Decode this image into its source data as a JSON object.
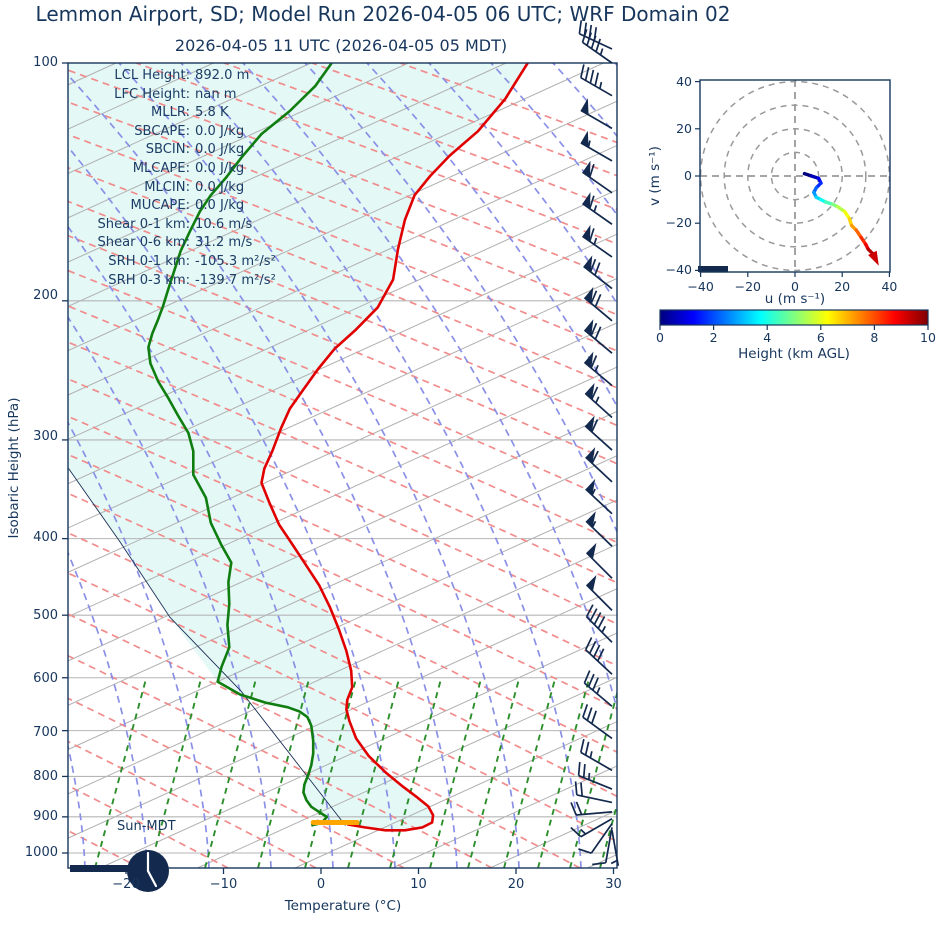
{
  "header": {
    "title": "Lemmon Airport, SD; Model Run 2026-04-05 06 UTC; WRF Domain 02",
    "subtitle": "2026-04-05 11 UTC  (2026-04-05 05 MDT)"
  },
  "skewt": {
    "xlabel": "Temperature (°C)",
    "ylabel": "Isobaric Height (hPa)",
    "x_ticks": [
      "−20",
      "−10",
      "0",
      "10",
      "20",
      "30"
    ],
    "y_ticks": [
      "100",
      "200",
      "300",
      "400",
      "500",
      "600",
      "700",
      "800",
      "900",
      "1000"
    ],
    "sun_label": "Sun-MDT",
    "stats": [
      {
        "label": "LCL Height:",
        "value": "892.0 m"
      },
      {
        "label": "LFC Height:",
        "value": "nan m"
      },
      {
        "label": "MLLR:",
        "value": "5.8 K"
      },
      {
        "label": "SBCAPE:",
        "value": "0.0 J/kg"
      },
      {
        "label": "SBCIN:",
        "value": "0.0 J/kg"
      },
      {
        "label": "MLCAPE:",
        "value": "0.0 J/kg"
      },
      {
        "label": "MLCIN:",
        "value": "0.0 J/kg"
      },
      {
        "label": "MUCAPE:",
        "value": "0.0 J/kg"
      },
      {
        "label": "Shear 0-1 km:",
        "value": "10.6 m/s"
      },
      {
        "label": "Shear 0-6 km:",
        "value": "31.2 m/s"
      },
      {
        "label": "SRH 0-1 km:",
        "value": "-105.3 m²/s²"
      },
      {
        "label": "SRH 0-3 km:",
        "value": "-139.7 m²/s²"
      }
    ]
  },
  "hodograph": {
    "xlabel": "u (m s⁻¹)",
    "ylabel": "v (m s⁻¹)",
    "x_ticks": [
      "−40",
      "−20",
      "0",
      "20",
      "40"
    ],
    "y_ticks": [
      "40",
      "20",
      "0",
      "−20",
      "−40"
    ]
  },
  "colorbar": {
    "label": "Height (km AGL)",
    "ticks": [
      "0",
      "2",
      "4",
      "6",
      "8",
      "10"
    ]
  },
  "colors": {
    "text": "#17365c",
    "spine": "#17365c",
    "temperature_line": "#e00000",
    "dewpoint_line": "#0f7d0f",
    "parcel_line": "#1a2f55",
    "shade_fill": "#e4f8f6",
    "isotherm_gray": "#b0b0b0",
    "pressure_grid": "#b5b5b5",
    "dry_adiabat": "#f18c8c",
    "moist_adiabat": "#8a90e6",
    "mixing_ratio": "#2c8f2c",
    "barb_navy": "#13294d",
    "surface_marker": "#ffa500",
    "hodo_grid": "#999999"
  },
  "chart_data": {
    "type": "line",
    "title": "2026-04-05 11 UTC  (2026-04-05 05 MDT)",
    "xlabel": "Temperature (°C)",
    "ylabel": "Isobaric Height (hPa)",
    "axes": {
      "skewt_xlim_degC": [
        -26,
        31
      ],
      "skewt_plim_hPa": [
        1048,
        100
      ],
      "skew_note": "x values below are skewed display coordinates (x-axis reading directly under the point)",
      "hodograph_xlim": [
        -40,
        40
      ],
      "hodograph_ylim": [
        -40,
        40
      ],
      "colorbar_range_km": [
        0,
        10
      ]
    },
    "temperature_profile": [
      [
        21.2,
        100
      ],
      [
        18.9,
        111
      ],
      [
        16.1,
        122
      ],
      [
        13.2,
        131
      ],
      [
        11.2,
        139
      ],
      [
        9.6,
        147
      ],
      [
        8.6,
        158
      ],
      [
        7.9,
        172
      ],
      [
        7.4,
        188
      ],
      [
        5.8,
        204
      ],
      [
        3.5,
        218
      ],
      [
        1.4,
        230
      ],
      [
        -0.3,
        244
      ],
      [
        -1.8,
        259
      ],
      [
        -3.2,
        274
      ],
      [
        -4.1,
        290
      ],
      [
        -5.0,
        310
      ],
      [
        -5.8,
        326
      ],
      [
        -6.1,
        340
      ],
      [
        -5.3,
        360
      ],
      [
        -4.3,
        384
      ],
      [
        -3.1,
        404
      ],
      [
        -1.6,
        431
      ],
      [
        -0.2,
        458
      ],
      [
        0.9,
        488
      ],
      [
        1.8,
        520
      ],
      [
        2.6,
        555
      ],
      [
        3.1,
        588
      ],
      [
        3.2,
        617
      ],
      [
        2.7,
        640
      ],
      [
        2.6,
        658
      ],
      [
        2.9,
        680
      ],
      [
        3.6,
        716
      ],
      [
        4.9,
        754
      ],
      [
        6.7,
        792
      ],
      [
        8.4,
        824
      ],
      [
        9.9,
        851
      ],
      [
        11.0,
        873
      ],
      [
        11.5,
        896
      ],
      [
        11.4,
        915
      ],
      [
        10.4,
        928
      ],
      [
        8.6,
        936
      ],
      [
        6.6,
        936
      ],
      [
        4.5,
        928
      ],
      [
        2.7,
        920
      ]
    ],
    "dewpoint_profile": [
      [
        1.1,
        100
      ],
      [
        -0.6,
        107
      ],
      [
        -3.2,
        115
      ],
      [
        -6.1,
        123
      ],
      [
        -8.0,
        131
      ],
      [
        -9.8,
        140
      ],
      [
        -11.3,
        147
      ],
      [
        -12.4,
        154
      ],
      [
        -13.4,
        163
      ],
      [
        -14.4,
        173
      ],
      [
        -15.1,
        184
      ],
      [
        -15.7,
        194
      ],
      [
        -16.2,
        203
      ],
      [
        -16.7,
        211
      ],
      [
        -17.3,
        220
      ],
      [
        -17.7,
        229
      ],
      [
        -17.5,
        240
      ],
      [
        -16.7,
        253
      ],
      [
        -15.7,
        265
      ],
      [
        -14.7,
        279
      ],
      [
        -13.6,
        294
      ],
      [
        -13.1,
        310
      ],
      [
        -13.1,
        332
      ],
      [
        -11.8,
        355
      ],
      [
        -11.3,
        382
      ],
      [
        -10.2,
        408
      ],
      [
        -9.2,
        429
      ],
      [
        -9.5,
        454
      ],
      [
        -9.4,
        484
      ],
      [
        -9.6,
        514
      ],
      [
        -9.4,
        549
      ],
      [
        -10.2,
        581
      ],
      [
        -10.6,
        607
      ],
      [
        -8.3,
        630
      ],
      [
        -5.7,
        645
      ],
      [
        -3.4,
        654
      ],
      [
        -2.2,
        662
      ],
      [
        -1.4,
        673
      ],
      [
        -1.0,
        690
      ],
      [
        -0.8,
        721
      ],
      [
        -0.8,
        748
      ],
      [
        -1.0,
        774
      ],
      [
        -1.3,
        796
      ],
      [
        -1.7,
        819
      ],
      [
        -1.8,
        838
      ],
      [
        -1.5,
        857
      ],
      [
        -1.0,
        874
      ],
      [
        -0.1,
        889
      ],
      [
        0.6,
        900
      ],
      [
        0.1,
        915
      ],
      [
        -1.0,
        923
      ]
    ],
    "parcel_profile": [
      [
        -25.9,
        326
      ],
      [
        -20.6,
        404
      ],
      [
        -15.5,
        503
      ],
      [
        -8.2,
        624
      ],
      [
        -2.3,
        774
      ],
      [
        2.5,
        923
      ]
    ],
    "surface_marker": {
      "t_range": [
        -0.8,
        3.7
      ],
      "p": 915
    },
    "wind_barbs_p_kt_dir": [
      [
        96,
        40,
        295
      ],
      [
        100,
        45,
        305
      ],
      [
        110,
        45,
        300
      ],
      [
        121,
        50,
        300
      ],
      [
        133,
        55,
        300
      ],
      [
        146,
        60,
        305
      ],
      [
        160,
        65,
        305
      ],
      [
        176,
        65,
        305
      ],
      [
        193,
        70,
        308
      ],
      [
        212,
        70,
        310
      ],
      [
        233,
        70,
        310
      ],
      [
        256,
        65,
        310
      ],
      [
        281,
        65,
        312
      ],
      [
        309,
        60,
        312
      ],
      [
        339,
        60,
        313
      ],
      [
        372,
        55,
        313
      ],
      [
        409,
        55,
        314
      ],
      [
        449,
        50,
        315
      ],
      [
        493,
        50,
        315
      ],
      [
        541,
        45,
        315
      ],
      [
        594,
        40,
        313
      ],
      [
        652,
        35,
        310
      ],
      [
        716,
        30,
        306
      ],
      [
        786,
        25,
        300
      ],
      [
        830,
        25,
        292
      ],
      [
        863,
        20,
        282
      ],
      [
        887,
        20,
        265
      ],
      [
        905,
        15,
        240
      ],
      [
        918,
        10,
        215
      ],
      [
        928,
        10,
        190
      ],
      [
        936,
        5,
        170
      ]
    ],
    "hodograph_trace": {
      "u": [
        4,
        7,
        10,
        11,
        9,
        8,
        9,
        11,
        13,
        16,
        18,
        21,
        23,
        24,
        26,
        28,
        30,
        31,
        33,
        34
      ],
      "v": [
        1,
        0,
        -1,
        -3,
        -5,
        -7,
        -9,
        -10,
        -11,
        -12,
        -13,
        -15,
        -18,
        -21,
        -23,
        -26,
        -29,
        -31,
        -33,
        -35
      ],
      "height_km": [
        0,
        0.5,
        1,
        1.5,
        2,
        2.5,
        3,
        3.5,
        4,
        4.5,
        5,
        5.5,
        6,
        6.5,
        7,
        7.5,
        8,
        8.5,
        9,
        10
      ]
    },
    "hodograph_rings": [
      10,
      20,
      30,
      40
    ]
  }
}
